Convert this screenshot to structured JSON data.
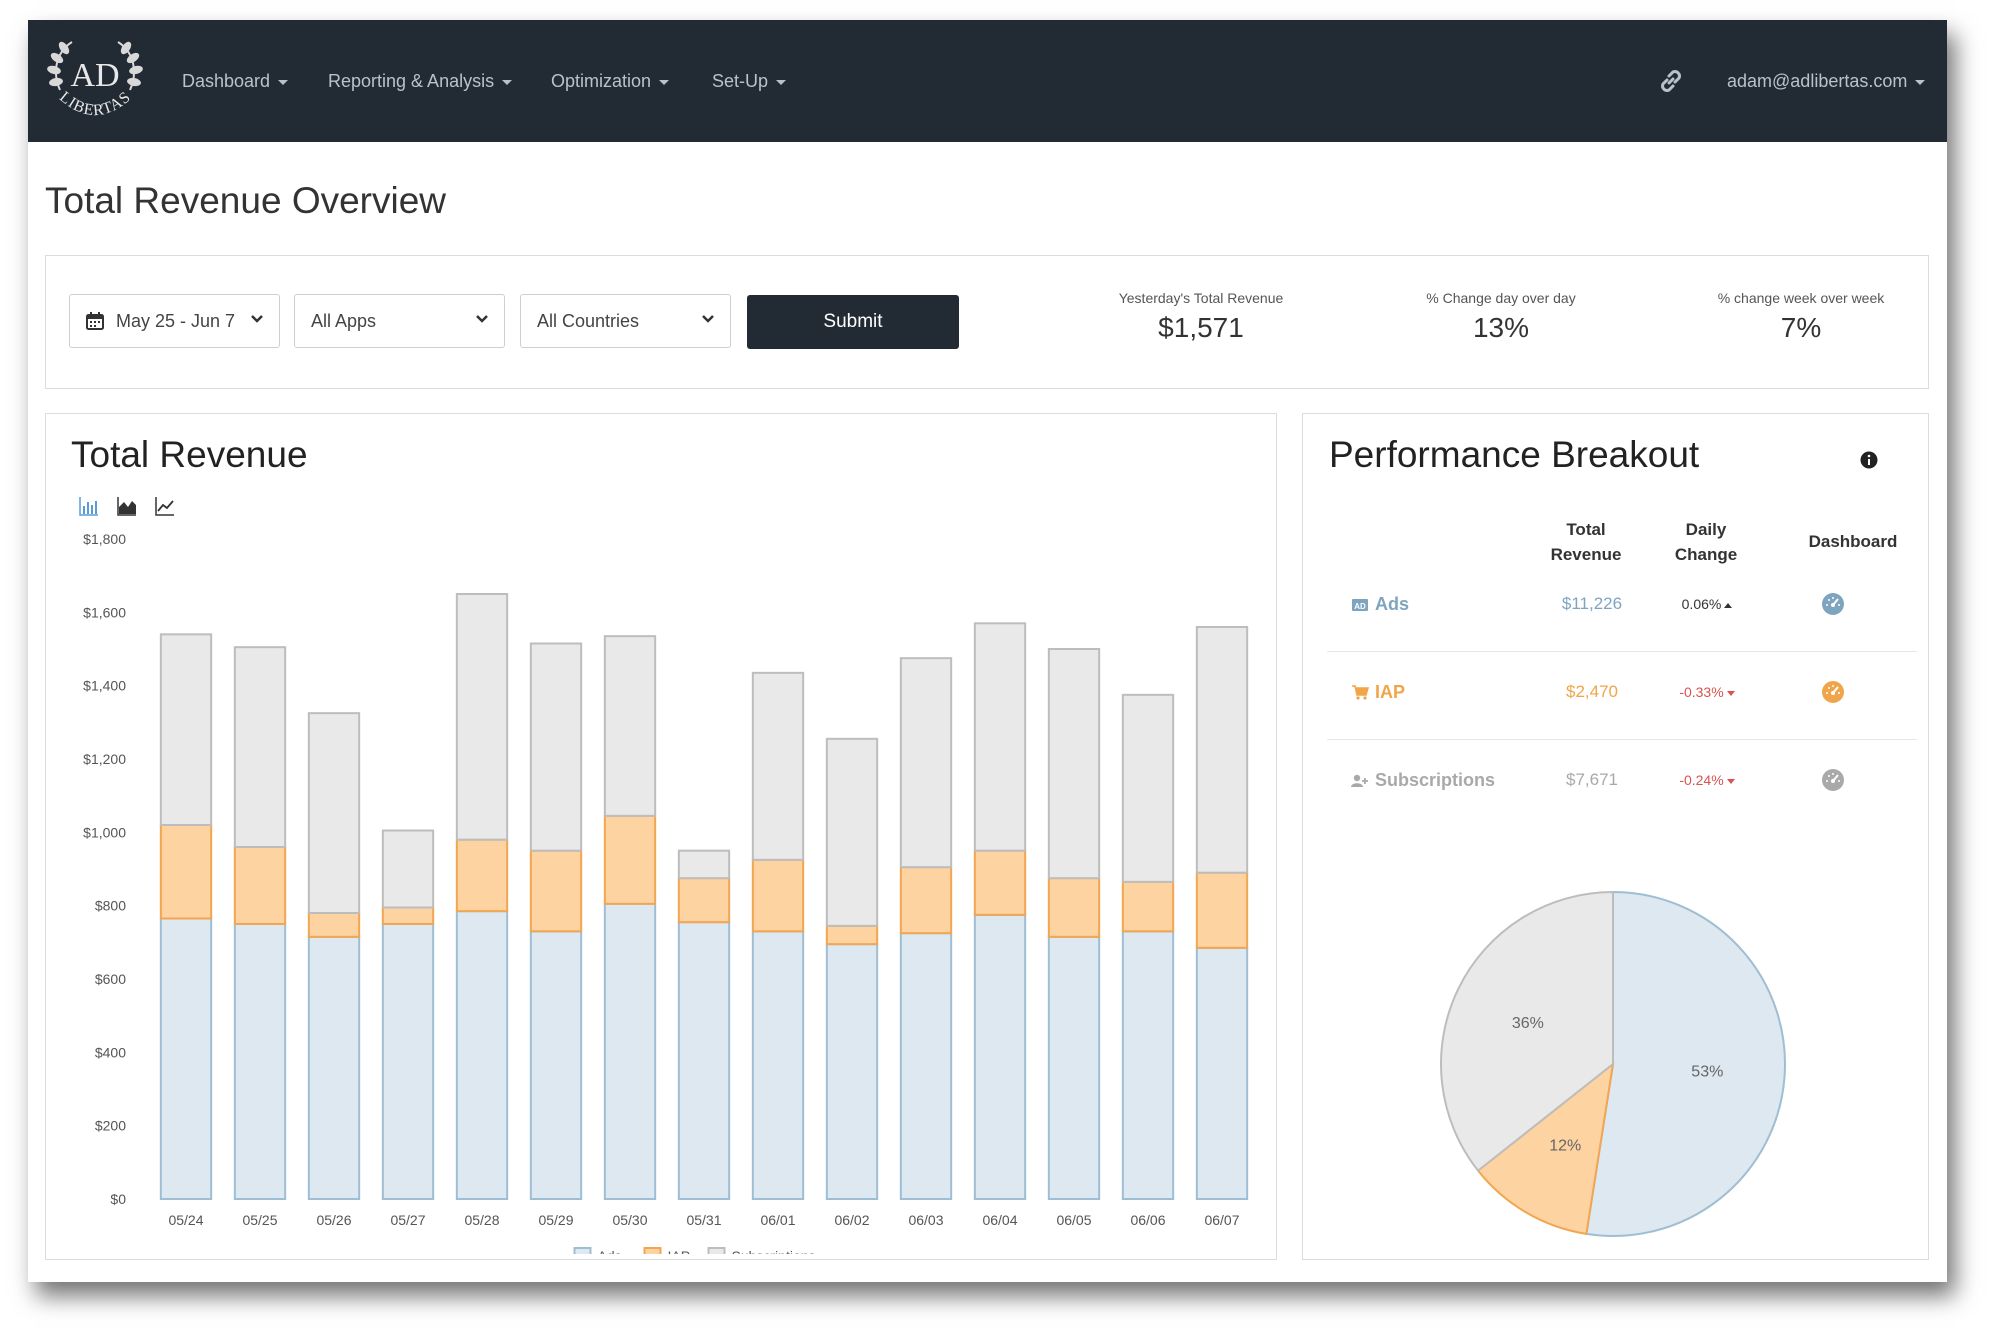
{
  "nav": {
    "items": [
      {
        "label": "Dashboard"
      },
      {
        "label": "Reporting & Analysis"
      },
      {
        "label": "Optimization"
      },
      {
        "label": "Set-Up"
      }
    ],
    "user_email": "adam@adlibertas.com",
    "logo_icon": "adlibertas-laurel-logo",
    "logo_text": "AD LIBERTAS"
  },
  "page": {
    "title": "Total Revenue Overview"
  },
  "filters": {
    "date_range": "May 25 - Jun 7",
    "apps": "All Apps",
    "countries": "All Countries",
    "submit_label": "Submit"
  },
  "stats": [
    {
      "label": "Yesterday's Total Revenue",
      "value": "$1,571"
    },
    {
      "label": "% Change day over day",
      "value": "13%"
    },
    {
      "label": "% change week over week",
      "value": "7%"
    }
  ],
  "revenue_card": {
    "title": "Total Revenue"
  },
  "breakout": {
    "title": "Performance Breakout",
    "headers": {
      "total_revenue": "Total Revenue",
      "daily_change": "Daily Change",
      "dashboard": "Dashboard"
    },
    "rows": [
      {
        "name": "Ads",
        "revenue": "$11,226",
        "change": "0.06%",
        "direction": "up",
        "color": "#7fa4c0",
        "icon": "ad-icon",
        "dash_icon": "gauge-icon"
      },
      {
        "name": "IAP",
        "revenue": "$2,470",
        "change": "-0.33%",
        "direction": "down",
        "color": "#f0a54a",
        "icon": "cart-icon",
        "dash_icon": "gauge-icon"
      },
      {
        "name": "Subscriptions",
        "revenue": "$7,671",
        "change": "-0.24%",
        "direction": "down",
        "color": "#a9a9a9",
        "icon": "user-plus-icon",
        "dash_icon": "gauge-icon"
      }
    ]
  },
  "colors": {
    "navbar": "#222b34",
    "ads_fill": "#dde8f0",
    "ads_stroke": "#9fbdd3",
    "iap_fill": "#fdd3a2",
    "iap_stroke": "#f2a651",
    "subs_fill": "#e9e9e9",
    "subs_stroke": "#bdbdbd"
  },
  "chart_data": [
    {
      "type": "bar",
      "stacked": true,
      "categories": [
        "05/24",
        "05/25",
        "05/26",
        "05/27",
        "05/28",
        "05/29",
        "05/30",
        "05/31",
        "06/01",
        "06/02",
        "06/03",
        "06/04",
        "06/05",
        "06/06",
        "06/07"
      ],
      "series": [
        {
          "name": "Ads",
          "values": [
            765,
            750,
            715,
            750,
            785,
            730,
            805,
            755,
            730,
            695,
            725,
            775,
            715,
            730,
            685
          ]
        },
        {
          "name": "IAP",
          "values": [
            255,
            210,
            65,
            45,
            195,
            220,
            240,
            120,
            195,
            50,
            180,
            175,
            160,
            135,
            205
          ]
        },
        {
          "name": "Subscriptions",
          "values": [
            520,
            545,
            545,
            210,
            670,
            565,
            490,
            75,
            510,
            510,
            570,
            620,
            625,
            510,
            670
          ]
        }
      ],
      "yticks": [
        "$0",
        "$200",
        "$400",
        "$600",
        "$800",
        "$1,000",
        "$1,200",
        "$1,400",
        "$1,600",
        "$1,800"
      ],
      "ylim": [
        0,
        1800
      ],
      "legend_position": "bottom",
      "grid": false
    },
    {
      "type": "pie",
      "labels": [
        "Ads",
        "IAP",
        "Subscriptions"
      ],
      "values": [
        53,
        12,
        36
      ],
      "value_labels": [
        "53%",
        "12%",
        "36%"
      ]
    }
  ]
}
